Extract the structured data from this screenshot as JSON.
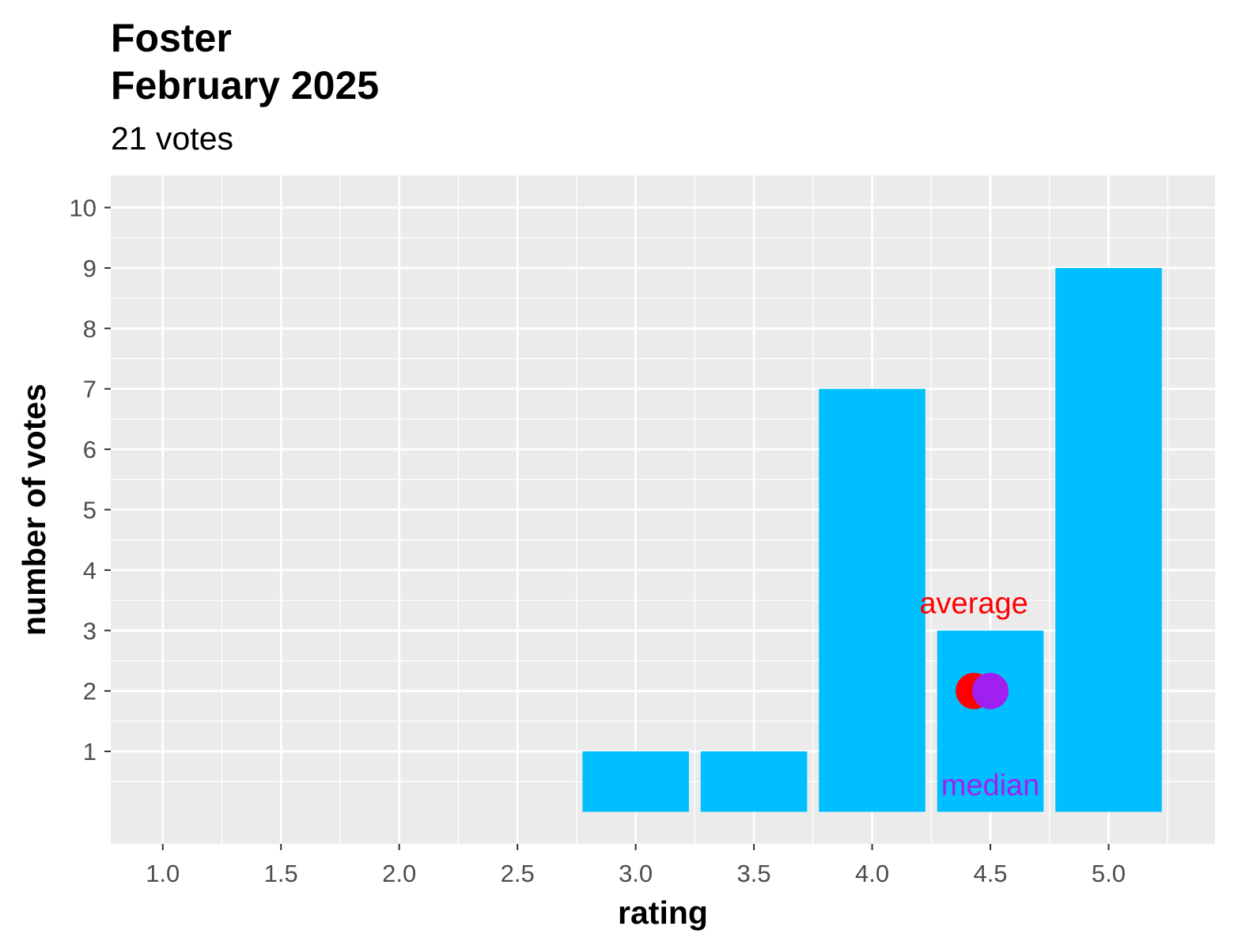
{
  "chart_data": {
    "type": "bar",
    "title_line1": "Foster",
    "title_line2": "February 2025",
    "subtitle": "21 votes",
    "xlabel": "rating",
    "ylabel": "number of votes",
    "x": [
      3.0,
      3.5,
      4.0,
      4.5,
      5.0
    ],
    "values": [
      1,
      1,
      7,
      3,
      9
    ],
    "xlim": [
      0.78,
      5.45
    ],
    "ylim": [
      -0.53,
      10.53
    ],
    "xticks": [
      1.0,
      1.5,
      2.0,
      2.5,
      3.0,
      3.5,
      4.0,
      4.5,
      5.0
    ],
    "xtick_labels": [
      "1.0",
      "1.5",
      "2.0",
      "2.5",
      "3.0",
      "3.5",
      "4.0",
      "4.5",
      "5.0"
    ],
    "yticks": [
      1,
      2,
      3,
      4,
      5,
      6,
      7,
      8,
      9,
      10
    ],
    "ytick_labels": [
      "1",
      "2",
      "3",
      "4",
      "5",
      "6",
      "7",
      "8",
      "9",
      "10"
    ],
    "bar_width": 0.45,
    "grid": true,
    "bar_color": "#00BFFF",
    "panel_color": "#EBEBEB",
    "annotations": {
      "average": {
        "label": "average",
        "x": 4.43,
        "y": 2,
        "color": "#FF0000"
      },
      "median": {
        "label": "median",
        "x": 4.5,
        "y": 2,
        "color": "#A020F0"
      }
    }
  }
}
